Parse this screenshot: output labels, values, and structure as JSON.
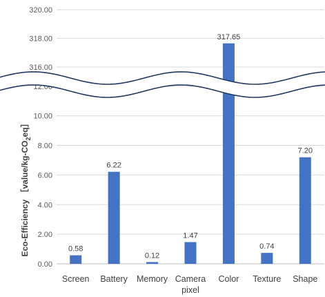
{
  "chart_data": {
    "type": "bar",
    "broken_axis": true,
    "ylabel_parts": [
      "Eco-Efficiency ［value/kg-CO",
      "2",
      "eq］"
    ],
    "categories": [
      [
        "Screen"
      ],
      [
        "Battery"
      ],
      [
        "Memory"
      ],
      [
        "Camera",
        "pixel"
      ],
      [
        "Color"
      ],
      [
        "Texture"
      ],
      [
        "Shape"
      ]
    ],
    "values": [
      0.58,
      6.22,
      0.12,
      1.47,
      317.65,
      0.74,
      7.2
    ],
    "value_labels": [
      "0.58",
      "6.22",
      "0.12",
      "1.47",
      "317.65",
      "0.74",
      "7.20"
    ],
    "lower_segment": {
      "range": [
        0,
        12
      ],
      "ticks": [
        0,
        2,
        4,
        6,
        8,
        10,
        12
      ],
      "tick_labels": [
        "0.00",
        "2.00",
        "4.00",
        "6.00",
        "8.00",
        "10.00",
        "12.00"
      ]
    },
    "upper_segment": {
      "range": [
        316,
        320
      ],
      "ticks": [
        316,
        318,
        320
      ],
      "tick_labels": [
        "316.00",
        "318.00",
        "320.00"
      ]
    },
    "bar_color": "#4472C4",
    "grid": true
  }
}
